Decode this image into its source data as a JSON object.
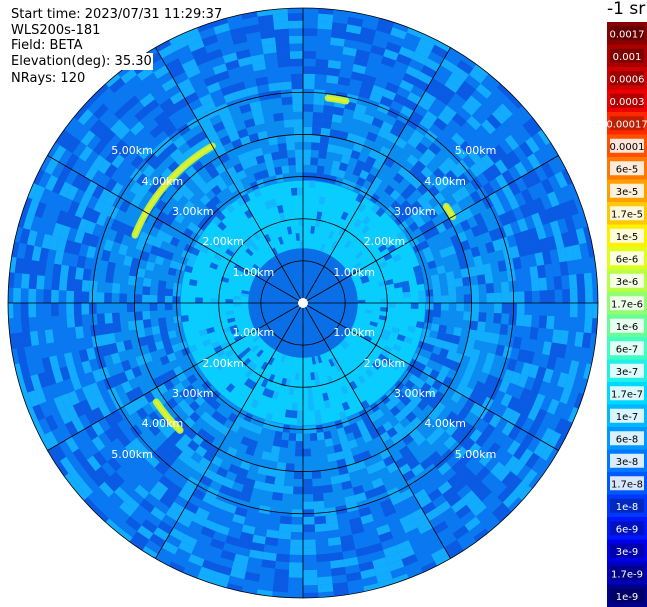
{
  "header": {
    "start_time": "Start time: 2023/07/31 11:29:37",
    "instrument": "WLS200s-181",
    "field": "Field: BETA",
    "elevation": "Elevation(deg): 35.30",
    "nrays": "NRays: 120"
  },
  "colorbar": {
    "unit": "-1 sr",
    "ticks": [
      "0.0017",
      "0.001",
      "0.0006",
      "0.0003",
      "0.00017",
      "0.0001",
      "6e-5",
      "3e-5",
      "1.7e-5",
      "1e-5",
      "6e-6",
      "3e-6",
      "1.7e-6",
      "1e-6",
      "6e-7",
      "3e-7",
      "1.7e-7",
      "1e-7",
      "6e-8",
      "3e-8",
      "1.7e-8",
      "1e-8",
      "6e-9",
      "3e-9",
      "1.7e-9",
      "1e-9"
    ],
    "colors": [
      "#880000",
      "#aa0000",
      "#cc0000",
      "#ee0000",
      "#ff2800",
      "#ff5000",
      "#ff7800",
      "#ffa000",
      "#ffc800",
      "#fff000",
      "#e0ff20",
      "#b8ff48",
      "#90ff70",
      "#68ff98",
      "#40ffc0",
      "#20f0e8",
      "#00d8ff",
      "#00b8ff",
      "#0098ff",
      "#0078ff",
      "#0058ff",
      "#0038ff",
      "#0018ff",
      "#0000e8",
      "#0000b8",
      "#00008a"
    ],
    "colors_color": [
      "#ffffff",
      "#ffffff",
      "#ffffff",
      "#ffffff",
      "#ffffff",
      "#000000",
      "#000000",
      "#000000",
      "#000000",
      "#000000",
      "#000000",
      "#000000",
      "#000000",
      "#000000",
      "#000000",
      "#000000",
      "#000000",
      "#000000",
      "#000000",
      "#000000",
      "#000000",
      "#ffffff",
      "#ffffff",
      "#ffffff",
      "#ffffff",
      "#ffffff"
    ]
  },
  "chart_data": {
    "type": "polar_ppi",
    "range_rings_km": [
      1,
      2,
      3,
      4,
      5
    ],
    "ring_labels": [
      "1.00km",
      "2.00km",
      "3.00km",
      "4.00km",
      "5.00km"
    ],
    "max_range_km": 7,
    "azimuth_spokes_deg": [
      0,
      30,
      60,
      90,
      120,
      150,
      180,
      210,
      240,
      270,
      300,
      330
    ],
    "colors": {
      "background_field": "#0a8cf0",
      "near_range": "#0a6ee6",
      "mid_range": "#0acdff",
      "far_range": "#0a78f0",
      "speckle_light": "#14b4ff",
      "speckle_dark": "#0a55e0",
      "feature": "#b4f050",
      "feature_core": "#e6f028"
    },
    "features": [
      {
        "name": "west arc",
        "range_km": 4.3,
        "az_start_deg": 292,
        "az_end_deg": 330
      },
      {
        "name": "north streak",
        "range_km": 4.9,
        "az_start_deg": 7,
        "az_end_deg": 12
      },
      {
        "name": "northeast streak",
        "range_km": 4.1,
        "az_start_deg": 56,
        "az_end_deg": 60
      },
      {
        "name": "southwest arc",
        "range_km": 4.2,
        "az_start_deg": 224,
        "az_end_deg": 236
      }
    ]
  }
}
